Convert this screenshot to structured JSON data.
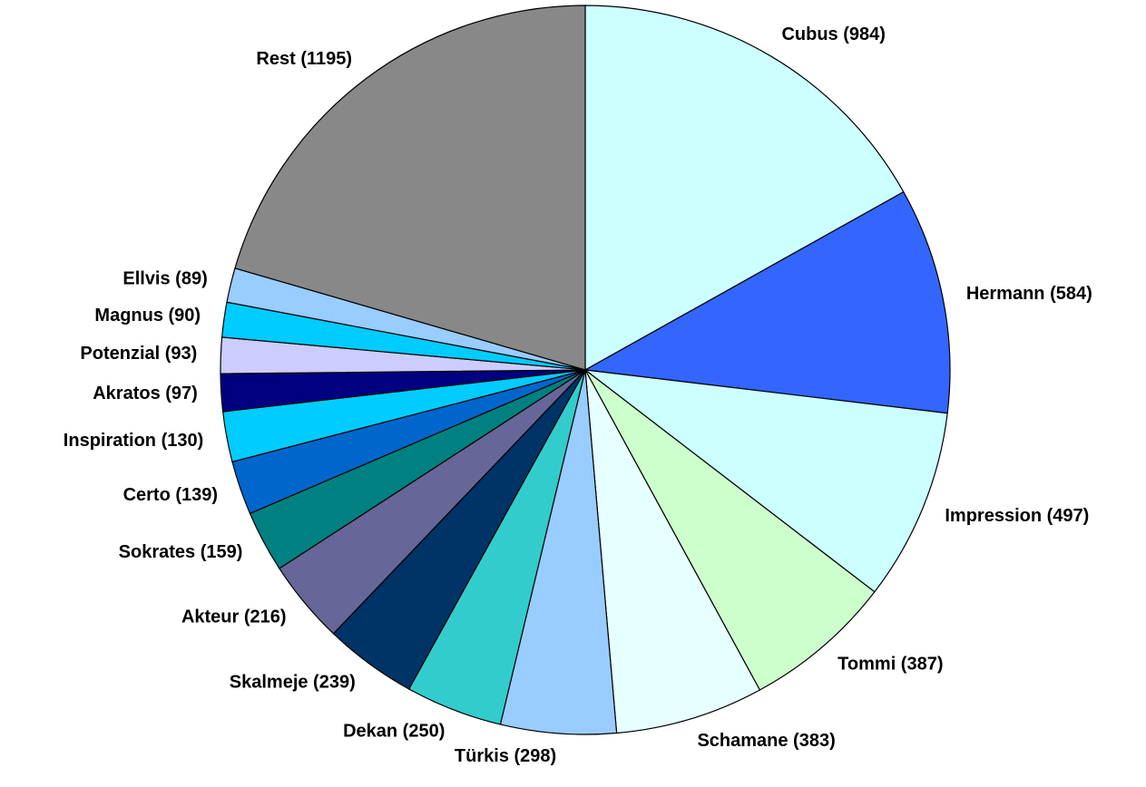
{
  "chart_data": {
    "type": "pie",
    "categories": [
      "Cubus (984)",
      "Hermann (584)",
      "Impression (497)",
      "Tommi (387)",
      "Schamane (383)",
      "Türkis (298)",
      "Dekan (250)",
      "Skalmeje (239)",
      "Akteur (216)",
      "Sokrates (159)",
      "Certo (139)",
      "Inspiration (130)",
      "Akratos (97)",
      "Potenzial (93)",
      "Magnus (90)",
      "Ellvis (89)",
      "Rest  (1195)"
    ],
    "values": [
      984,
      584,
      497,
      387,
      383,
      298,
      250,
      239,
      216,
      159,
      139,
      130,
      97,
      93,
      90,
      89,
      1195
    ],
    "colors": [
      "#ccffff",
      "#3366ff",
      "#ccffff",
      "#ccffcc",
      "#e6ffff",
      "#99ccff",
      "#33cccc",
      "#003366",
      "#666699",
      "#008080",
      "#0066cc",
      "#00ccff",
      "#000080",
      "#ccccff",
      "#00ccff",
      "#99ccff",
      "#888888"
    ]
  }
}
